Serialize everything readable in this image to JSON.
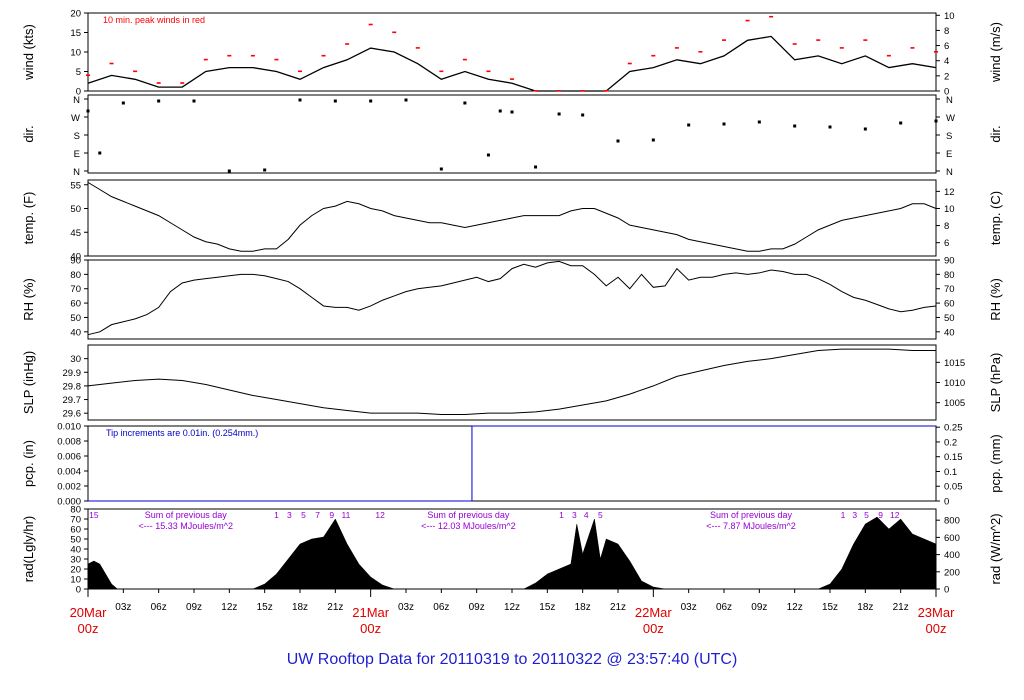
{
  "footer_title": "UW Rooftop Data for 20110319  to  20110322 @ 23:57:40  (UTC)",
  "colors": {
    "peak": "#ff0000",
    "pcp": "#0000cc",
    "note_pcp": "#0000cc",
    "solar": "#9400d3",
    "days": "#e00000",
    "footer": "#1f1fd0"
  },
  "x_axis": {
    "hour_ticks": [
      "03z",
      "06z",
      "09z",
      "12z",
      "15z",
      "18z",
      "21z",
      "03z",
      "06z",
      "09z",
      "12z",
      "15z",
      "18z",
      "21z",
      "03z",
      "06z",
      "09z",
      "12z",
      "15z",
      "18z",
      "21z"
    ],
    "day_labels": [
      {
        "top": "20Mar",
        "bottom": "00z"
      },
      {
        "top": "21Mar",
        "bottom": "00z"
      },
      {
        "top": "22Mar",
        "bottom": "00z"
      },
      {
        "top": "23Mar",
        "bottom": "00z"
      }
    ]
  },
  "chart_data": [
    {
      "type": "line",
      "name": "wind",
      "ylabel_left": "wind (kts)",
      "ylabel_right": "wind (m/s)",
      "ylim": [
        0,
        20
      ],
      "yticks_left": [
        0,
        5,
        10,
        15,
        20
      ],
      "ylim_right": [
        0,
        10.3
      ],
      "yticks_right": [
        0,
        2,
        4,
        6,
        8,
        10
      ],
      "annotation": "10 min. peak winds in red",
      "hours": [
        0,
        2,
        4,
        6,
        8,
        10,
        12,
        14,
        16,
        18,
        20,
        22,
        24,
        26,
        28,
        30,
        32,
        34,
        36,
        38,
        40,
        42,
        44,
        46,
        48,
        50,
        52,
        54,
        56,
        58,
        60,
        62,
        64,
        66,
        68,
        70,
        72
      ],
      "values": [
        2,
        4,
        3,
        1,
        1,
        5,
        6,
        6,
        5,
        3,
        6,
        8,
        11,
        10,
        7,
        3,
        5,
        3,
        2,
        0,
        0,
        0,
        0,
        5,
        6,
        8,
        7,
        9,
        13,
        14,
        8,
        9,
        7,
        9,
        6,
        7,
        6
      ],
      "peak_values": [
        4,
        7,
        5,
        2,
        2,
        8,
        9,
        9,
        8,
        5,
        9,
        12,
        17,
        15,
        11,
        5,
        8,
        5,
        3,
        0,
        0,
        0,
        0,
        7,
        9,
        11,
        10,
        13,
        18,
        19,
        12,
        13,
        11,
        13,
        9,
        11,
        10
      ]
    },
    {
      "type": "scatter",
      "name": "dir.",
      "ylabel_left": "dir.",
      "ylabel_right": "dir.",
      "yticks_left": [
        "N",
        "E",
        "S",
        "W",
        "N"
      ],
      "yticks_right": [
        "N",
        "E",
        "S",
        "W",
        "N"
      ],
      "hours": [
        0,
        1,
        3,
        6,
        9,
        12,
        15,
        18,
        21,
        24,
        27,
        30,
        32,
        34,
        35,
        36,
        38,
        40,
        42,
        45,
        48,
        51,
        54,
        57,
        60,
        63,
        66,
        69,
        72
      ],
      "directions": [
        300,
        90,
        340,
        350,
        350,
        0,
        5,
        355,
        350,
        350,
        355,
        10,
        340,
        80,
        300,
        295,
        20,
        285,
        280,
        150,
        155,
        230,
        235,
        245,
        225,
        220,
        210,
        240,
        250
      ]
    },
    {
      "type": "line",
      "name": "temp",
      "ylabel_left": "temp. (F)",
      "ylabel_right": "temp. (C)",
      "ylim": [
        40,
        56
      ],
      "yticks_left": [
        40,
        45,
        50,
        55
      ],
      "ylim_right": [
        4.44,
        13.33
      ],
      "yticks_right": [
        6,
        8,
        10,
        12
      ],
      "hours": [
        0,
        1,
        2,
        3,
        4,
        5,
        6,
        7,
        8,
        9,
        10,
        11,
        12,
        13,
        14,
        15,
        16,
        17,
        18,
        19,
        20,
        21,
        22,
        23,
        24,
        25,
        26,
        27,
        28,
        29,
        30,
        31,
        32,
        33,
        34,
        35,
        36,
        37,
        38,
        39,
        40,
        41,
        42,
        43,
        44,
        45,
        46,
        47,
        48,
        49,
        50,
        51,
        52,
        53,
        54,
        55,
        56,
        57,
        58,
        59,
        60,
        61,
        62,
        63,
        64,
        65,
        66,
        67,
        68,
        69,
        70,
        71,
        72
      ],
      "values": [
        55.5,
        54,
        52.5,
        51.5,
        50.5,
        49.5,
        48.5,
        47,
        45.5,
        44,
        43,
        42.5,
        41.5,
        41,
        41,
        41.5,
        41.5,
        43.5,
        46.5,
        48.5,
        50,
        50.5,
        51.5,
        51,
        50,
        49.5,
        48.5,
        48,
        47.5,
        47,
        47,
        46.5,
        46,
        46.5,
        47,
        47.5,
        48,
        48.5,
        48.5,
        48.5,
        48.5,
        49.5,
        50,
        50,
        49,
        48,
        46.5,
        46,
        45.5,
        45,
        44.5,
        43.5,
        43,
        42.5,
        42,
        41.5,
        41,
        41,
        41.5,
        41.5,
        42.5,
        44,
        45.5,
        46.5,
        47.5,
        48,
        48.5,
        49,
        49.5,
        50,
        51,
        51,
        50
      ]
    },
    {
      "type": "line",
      "name": "RH",
      "ylabel_left": "RH (%)",
      "ylabel_right": "RH (%)",
      "ylim": [
        35,
        90
      ],
      "yticks_left": [
        40,
        50,
        60,
        70,
        80,
        90
      ],
      "yticks_right": [
        40,
        50,
        60,
        70,
        80,
        90
      ],
      "hours": [
        0,
        1,
        2,
        3,
        4,
        5,
        6,
        7,
        8,
        9,
        10,
        11,
        12,
        13,
        14,
        15,
        16,
        17,
        18,
        19,
        20,
        21,
        22,
        23,
        24,
        25,
        26,
        27,
        28,
        29,
        30,
        31,
        32,
        33,
        34,
        35,
        36,
        37,
        38,
        39,
        40,
        41,
        42,
        43,
        44,
        45,
        46,
        47,
        48,
        49,
        50,
        51,
        52,
        53,
        54,
        55,
        56,
        57,
        58,
        59,
        60,
        61,
        62,
        63,
        64,
        65,
        66,
        67,
        68,
        69,
        70,
        71,
        72
      ],
      "values": [
        38,
        40,
        45,
        47,
        49,
        52,
        57,
        68,
        74,
        76,
        77,
        78,
        79,
        80,
        80,
        79,
        77,
        75,
        70,
        64,
        58,
        57,
        57,
        55,
        58,
        62,
        65,
        68,
        70,
        71,
        72,
        74,
        76,
        78,
        75,
        77,
        84,
        87,
        85,
        88,
        89,
        86,
        86,
        80,
        72,
        78,
        70,
        80,
        71,
        72,
        84,
        76,
        78,
        78,
        80,
        81,
        80,
        81,
        83,
        82,
        80,
        80,
        77,
        73,
        68,
        64,
        62,
        59,
        56,
        54,
        55,
        57,
        58
      ]
    },
    {
      "type": "line",
      "name": "SLP",
      "ylabel_left": "SLP (inHg)",
      "ylabel_right": "SLP (hPa)",
      "ylim": [
        29.55,
        30.1
      ],
      "yticks_left": [
        29.6,
        29.7,
        29.8,
        29.9,
        30.0
      ],
      "ylim_right": [
        1000.7,
        1019.3
      ],
      "yticks_right": [
        1005,
        1010,
        1015
      ],
      "hours": [
        0,
        2,
        4,
        6,
        8,
        10,
        12,
        14,
        16,
        18,
        20,
        22,
        24,
        26,
        28,
        30,
        32,
        34,
        36,
        38,
        40,
        42,
        44,
        46,
        48,
        50,
        52,
        54,
        56,
        58,
        60,
        62,
        64,
        66,
        68,
        70,
        72
      ],
      "values": [
        29.8,
        29.82,
        29.84,
        29.85,
        29.84,
        29.81,
        29.77,
        29.73,
        29.7,
        29.67,
        29.64,
        29.62,
        29.6,
        29.6,
        29.6,
        29.59,
        29.59,
        29.6,
        29.6,
        29.61,
        29.63,
        29.66,
        29.69,
        29.74,
        29.8,
        29.87,
        29.91,
        29.95,
        29.98,
        30.0,
        30.03,
        30.06,
        30.07,
        30.07,
        30.07,
        30.06,
        30.06
      ]
    },
    {
      "type": "line",
      "name": "pcp",
      "ylabel_left": "pcp. (in)",
      "ylabel_right": "pcp. (mm)",
      "ylim": [
        0,
        0.01
      ],
      "yticks_left": [
        "0.000",
        "0.002",
        "0.004",
        "0.006",
        "0.008",
        "0.010"
      ],
      "ylim_right": [
        0,
        0.254
      ],
      "yticks_right": [
        "0",
        "0.05",
        "0.1",
        "0.15",
        "0.2",
        "0.25"
      ],
      "annotation": "Tip increments are 0.01in. (0.254mm.)",
      "hours": [
        0,
        32.6,
        32.6,
        72
      ],
      "values": [
        0,
        0,
        0.01,
        0.01
      ]
    },
    {
      "type": "area",
      "name": "rad",
      "ylabel_left": "rad(Lgly/hr)",
      "ylabel_right": "rad (W/m^2)",
      "ylim": [
        0,
        80
      ],
      "yticks_left": [
        0,
        10,
        20,
        30,
        40,
        50,
        60,
        70,
        80
      ],
      "ylim_right": [
        0,
        930
      ],
      "yticks_right": [
        0,
        200,
        400,
        600,
        800
      ],
      "hours": [
        0,
        0.5,
        1,
        1.5,
        2,
        2.5,
        14,
        15,
        16,
        17,
        18,
        19,
        20,
        21,
        22,
        23,
        24,
        25,
        26,
        37,
        38,
        39,
        40,
        41,
        41.5,
        42,
        43,
        43.5,
        44,
        45,
        46,
        47,
        48,
        49,
        50,
        50.5,
        62,
        63,
        64,
        65,
        66,
        67,
        68,
        69,
        70,
        71,
        72
      ],
      "values": [
        25,
        28,
        25,
        15,
        5,
        0,
        0,
        5,
        15,
        30,
        45,
        50,
        52,
        70,
        45,
        25,
        12,
        4,
        0,
        0,
        6,
        15,
        20,
        25,
        65,
        35,
        70,
        30,
        50,
        45,
        28,
        8,
        2,
        0,
        0,
        0,
        0,
        5,
        20,
        45,
        65,
        72,
        60,
        70,
        55,
        50,
        45
      ],
      "hour_marks": [
        {
          "h": 0.5,
          "label": "15"
        },
        {
          "h": 16.0,
          "label": "1"
        },
        {
          "h": 17.1,
          "label": "3"
        },
        {
          "h": 18.3,
          "label": "5"
        },
        {
          "h": 19.5,
          "label": "7"
        },
        {
          "h": 20.7,
          "label": "9"
        },
        {
          "h": 21.9,
          "label": "11"
        },
        {
          "h": 24.8,
          "label": "12"
        },
        {
          "h": 40.2,
          "label": "1"
        },
        {
          "h": 41.3,
          "label": "3"
        },
        {
          "h": 42.3,
          "label": "4"
        },
        {
          "h": 43.5,
          "label": "5"
        },
        {
          "h": 64.1,
          "label": "1"
        },
        {
          "h": 65.1,
          "label": "3"
        },
        {
          "h": 66.1,
          "label": "5"
        },
        {
          "h": 67.3,
          "label": "9"
        },
        {
          "h": 68.5,
          "label": "12"
        }
      ],
      "daily_sums": [
        {
          "h": 4.9,
          "line1": "Sum of previous day",
          "line2": "<--- 15.33 MJoules/m^2"
        },
        {
          "h": 28.9,
          "line1": "Sum of previous day",
          "line2": "<--- 12.03 MJoules/m^2"
        },
        {
          "h": 52.9,
          "line1": "Sum of previous day",
          "line2": "<--- 7.87 MJoules/m^2"
        }
      ]
    }
  ]
}
